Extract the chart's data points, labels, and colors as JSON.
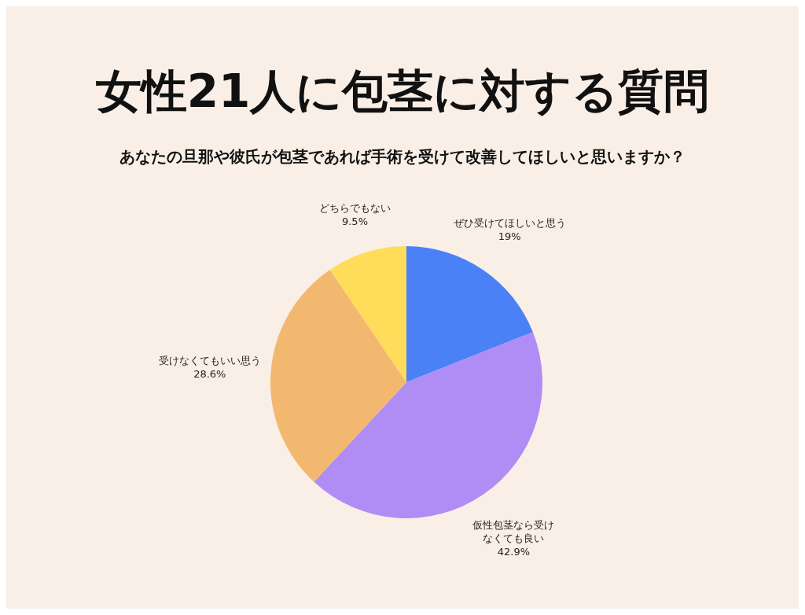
{
  "chart_data": {
    "type": "pie",
    "title": "女性21人に包茎に対する質問",
    "subtitle": "あなたの旦那や彼氏が包茎であれば手術を受けて改善してほしいと思いますか？",
    "categories": [
      "ぜひ受けてほしいと思う",
      "仮性包茎なら受けなくても良い",
      "受けなくてもいい思う",
      "どちらでもない"
    ],
    "values": [
      19,
      42.9,
      28.6,
      9.5
    ],
    "colors": [
      "#4a81f7",
      "#b08cf5",
      "#f3b86f",
      "#ffdc5a"
    ],
    "value_labels": [
      "19%",
      "42.9%",
      "28.6%",
      "9.5%"
    ]
  }
}
